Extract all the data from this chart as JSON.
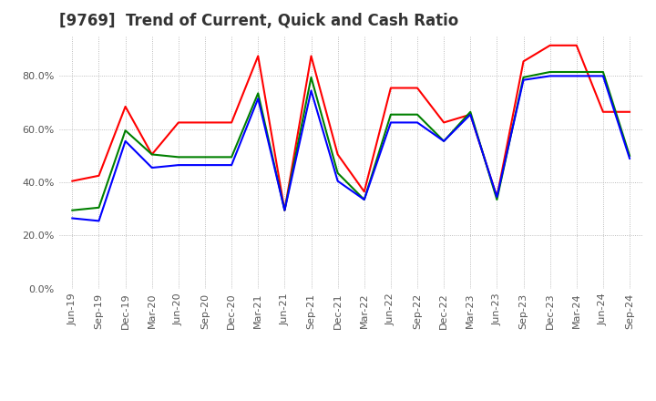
{
  "title": "[9769]  Trend of Current, Quick and Cash Ratio",
  "x_labels": [
    "Jun-19",
    "Sep-19",
    "Dec-19",
    "Mar-20",
    "Jun-20",
    "Sep-20",
    "Dec-20",
    "Mar-21",
    "Jun-21",
    "Sep-21",
    "Dec-21",
    "Mar-22",
    "Jun-22",
    "Sep-22",
    "Dec-22",
    "Mar-23",
    "Jun-23",
    "Sep-23",
    "Dec-23",
    "Mar-24",
    "Jun-24",
    "Sep-24"
  ],
  "current_ratio": [
    0.405,
    0.425,
    0.685,
    0.505,
    0.625,
    0.625,
    0.625,
    0.875,
    0.295,
    0.875,
    0.505,
    0.365,
    0.755,
    0.755,
    0.625,
    0.655,
    0.345,
    0.855,
    0.915,
    0.915,
    0.665,
    0.665
  ],
  "quick_ratio": [
    0.295,
    0.305,
    0.595,
    0.505,
    0.495,
    0.495,
    0.495,
    0.735,
    0.295,
    0.795,
    0.435,
    0.335,
    0.655,
    0.655,
    0.555,
    0.665,
    0.335,
    0.795,
    0.815,
    0.815,
    0.815,
    0.5
  ],
  "cash_ratio": [
    0.265,
    0.255,
    0.555,
    0.455,
    0.465,
    0.465,
    0.465,
    0.715,
    0.295,
    0.745,
    0.405,
    0.335,
    0.625,
    0.625,
    0.555,
    0.655,
    0.345,
    0.785,
    0.8,
    0.8,
    0.8,
    0.49
  ],
  "current_color": "#ff0000",
  "quick_color": "#008000",
  "cash_color": "#0000ff",
  "bg_color": "#ffffff",
  "grid_color": "#aaaaaa",
  "ylim": [
    0.0,
    0.95
  ],
  "yticks": [
    0.0,
    0.2,
    0.4,
    0.6,
    0.8
  ],
  "title_fontsize": 12,
  "legend_fontsize": 9,
  "tick_fontsize": 8
}
